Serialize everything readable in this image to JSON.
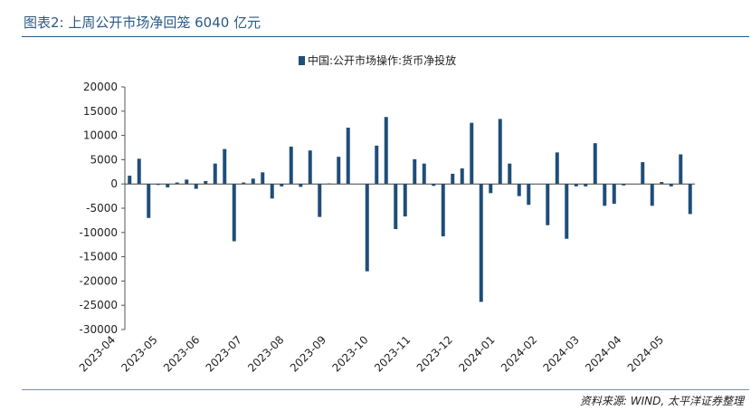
{
  "figure": {
    "title": "图表2: 上周公开市场净回笼 6040 亿元",
    "source": "资料来源: WIND, 太平洋证券整理"
  },
  "chart_data": {
    "type": "bar",
    "legend_label": "中国:公开市场操作:货币净投放",
    "legend_position": "top-center",
    "color": "#1f4e79",
    "ylim": [
      -30000,
      20000
    ],
    "yticks": [
      20000,
      15000,
      10000,
      5000,
      0,
      -5000,
      -10000,
      -15000,
      -20000,
      -25000,
      -30000
    ],
    "ytick_labels": [
      "20000",
      "15000",
      "10000",
      "5000",
      "0",
      "-5000",
      "-10000",
      "-15000",
      "-20000",
      "-25000",
      "-30000"
    ],
    "grid": false,
    "xtick_labels": [
      "2023-04",
      "2023-05",
      "2023-06",
      "2023-07",
      "2023-08",
      "2023-09",
      "2023-10",
      "2023-11",
      "2023-12",
      "2024-01",
      "2024-02",
      "2024-03",
      "2024-04",
      "2024-05"
    ],
    "values": [
      1700,
      5200,
      -7000,
      -200,
      -700,
      300,
      900,
      -1000,
      600,
      4200,
      7200,
      -11800,
      300,
      1100,
      2400,
      -3000,
      -500,
      7700,
      -600,
      6900,
      -6800,
      100,
      5600,
      11600,
      0,
      -18000,
      7900,
      13800,
      -9300,
      -6700,
      5100,
      4200,
      -400,
      -10800,
      2100,
      3200,
      12600,
      -24300,
      -1900,
      13400,
      4200,
      -2500,
      -4300,
      0,
      -8500,
      6500,
      -11300,
      -500,
      -500,
      8400,
      -4500,
      -4100,
      -300,
      0,
      4500,
      -4500,
      400,
      -500,
      6100,
      -6200
    ]
  }
}
